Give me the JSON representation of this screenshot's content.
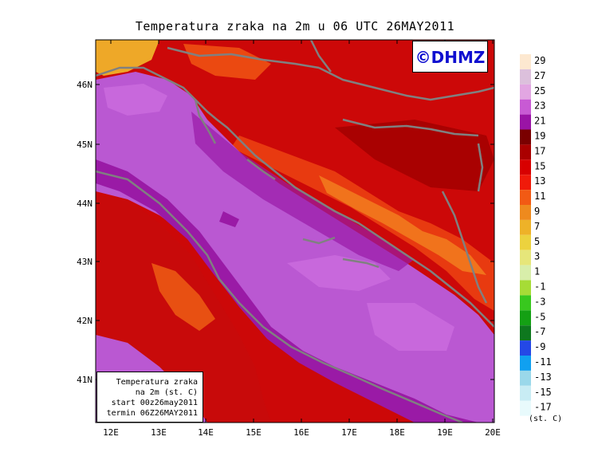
{
  "title": "Temperatura zraka na 2m u 06 UTC 26MAY2011",
  "logo": "©DHMZ",
  "info_box": [
    "Temperatura zraka",
    "na 2m (st. C)",
    "start 00z26may2011",
    "termin 06Z26MAY2011"
  ],
  "x_axis_ticks": [
    "12E",
    "13E",
    "14E",
    "15E",
    "16E",
    "17E",
    "18E",
    "19E",
    "20E"
  ],
  "y_axis_ticks": [
    "46N",
    "45N",
    "44N",
    "43N",
    "42N",
    "41N"
  ],
  "legend": {
    "units": "(st. C)",
    "labels": [
      "29",
      "27",
      "25",
      "23",
      "21",
      "19",
      "17",
      "15",
      "13",
      "11",
      "9",
      "7",
      "5",
      "3",
      "1",
      "-1",
      "-3",
      "-5",
      "-7",
      "-9",
      "-11",
      "-13",
      "-15",
      "-17"
    ],
    "colors": [
      "#fde8d0",
      "#dcc0dc",
      "#e2a6e2",
      "#c85ad4",
      "#9a14a6",
      "#7a0000",
      "#aa0000",
      "#d80000",
      "#f01a0a",
      "#f25a14",
      "#ee8a1e",
      "#eeb228",
      "#ecd23e",
      "#e6e67a",
      "#d8eeaa",
      "#a6dc36",
      "#38c81e",
      "#14a014",
      "#0e781e",
      "#2448e6",
      "#10a0f0",
      "#9ad8ea",
      "#c8ecf4",
      "#e8fafc"
    ]
  },
  "colors": {
    "sea": "#ba58d2",
    "sea_dark": "#9a1aa6",
    "land_hot": "#cc0808",
    "land_warm": "#e83a10",
    "mountain": "#f27a1e",
    "coast": "#808080"
  }
}
